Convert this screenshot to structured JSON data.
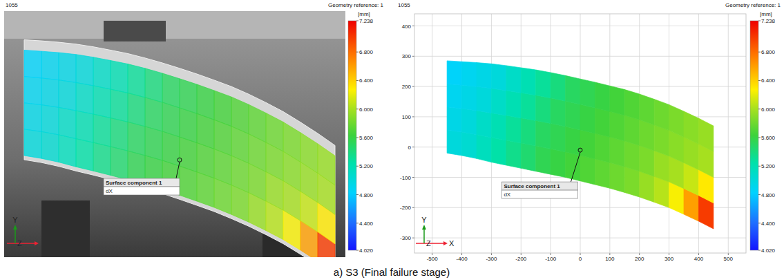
{
  "caption": "a) S3 (Final failure stage)",
  "chart_data": [
    {
      "type": "image",
      "title": "1055",
      "subtitle": "Geometry reference: 1",
      "annotations": [
        "Surface component 1",
        "dX"
      ],
      "axis_labels": {
        "y": "Y",
        "z": "Z"
      },
      "tick_labels": false,
      "colorbar": {
        "label": "[mm]",
        "range": [
          4.02,
          7.238
        ],
        "ticks": [
          {
            "value": 4.02,
            "label": "4.020"
          },
          {
            "value": 4.4,
            "label": "4.400"
          },
          {
            "value": 4.8,
            "label": "4.800"
          },
          {
            "value": 5.2,
            "label": "5.200"
          },
          {
            "value": 5.6,
            "label": "5.600"
          },
          {
            "value": 6.0,
            "label": "6.000"
          },
          {
            "value": 6.4,
            "label": "6.400"
          },
          {
            "value": 6.8,
            "label": "6.800"
          },
          7.238
        ]
      }
    },
    {
      "type": "heatmap",
      "title": "1055",
      "subtitle": "Geometry reference: 1",
      "annotations": [
        "Surface component 1",
        "dX"
      ],
      "axis_labels": {
        "x": "X",
        "y": "Y",
        "z": "Z"
      },
      "xlim": [
        -560,
        560
      ],
      "ylim": [
        -350,
        440
      ],
      "xticks": [
        -500,
        -400,
        -300,
        -200,
        -100,
        0,
        100,
        200,
        300,
        400,
        500
      ],
      "yticks": [
        -300,
        -200,
        -100,
        0,
        100,
        200,
        300,
        400
      ],
      "grid": true,
      "x_edges": [
        -450,
        -400,
        -350,
        -300,
        -250,
        -200,
        -150,
        -100,
        -50,
        0,
        50,
        100,
        150,
        200,
        250,
        300,
        350,
        400,
        450
      ],
      "top": [
        285,
        282,
        279,
        275,
        269,
        262,
        255,
        246,
        236,
        225,
        214,
        202,
        190,
        175,
        158,
        140,
        118,
        95,
        70
      ],
      "bottom": [
        -20,
        -28,
        -38,
        -50,
        -60,
        -70,
        -80,
        -90,
        -100,
        -112,
        -124,
        -136,
        -150,
        -165,
        -182,
        -200,
        -222,
        -245,
        -270
      ],
      "values": [
        [
          5.0,
          4.95,
          4.9,
          4.85
        ],
        [
          5.05,
          5.0,
          4.95,
          4.9
        ],
        [
          5.15,
          5.1,
          5.0,
          4.95
        ],
        [
          5.25,
          5.2,
          5.1,
          5.0
        ],
        [
          5.35,
          5.3,
          5.2,
          5.1
        ],
        [
          5.45,
          5.4,
          5.3,
          5.2
        ],
        [
          5.55,
          5.5,
          5.4,
          5.3
        ],
        [
          5.6,
          5.55,
          5.5,
          5.4
        ],
        [
          5.65,
          5.6,
          5.55,
          5.5
        ],
        [
          5.7,
          5.65,
          5.6,
          5.55
        ],
        [
          5.75,
          5.7,
          5.65,
          5.6
        ],
        [
          5.8,
          5.75,
          5.7,
          5.65
        ],
        [
          5.85,
          5.8,
          5.75,
          5.7
        ],
        [
          5.95,
          5.85,
          5.8,
          5.75
        ],
        [
          6.05,
          5.95,
          5.85,
          5.8
        ],
        [
          6.25,
          6.0,
          5.9,
          5.85
        ],
        [
          6.6,
          6.1,
          5.95,
          5.9
        ],
        [
          7.0,
          6.3,
          6.0,
          5.95
        ]
      ],
      "colorbar": {
        "label": "[mm]",
        "range": [
          4.02,
          7.238
        ],
        "ticks": [
          {
            "value": 4.02,
            "label": "4.020"
          },
          {
            "value": 4.4,
            "label": "4.400"
          },
          {
            "value": 4.8,
            "label": "4.800"
          },
          {
            "value": 5.2,
            "label": "5.200"
          },
          {
            "value": 5.6,
            "label": "5.600"
          },
          {
            "value": 6.0,
            "label": "6.000"
          },
          {
            "value": 6.4,
            "label": "6.400"
          },
          {
            "value": 6.8,
            "label": "6.800"
          },
          7.238
        ]
      }
    }
  ]
}
